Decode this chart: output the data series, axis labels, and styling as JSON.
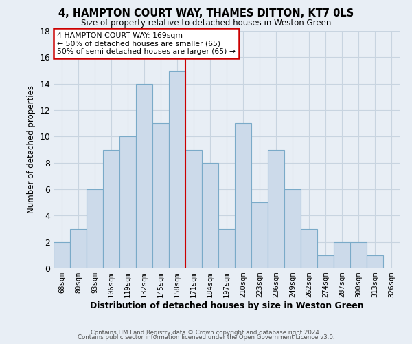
{
  "title": "4, HAMPTON COURT WAY, THAMES DITTON, KT7 0LS",
  "subtitle": "Size of property relative to detached houses in Weston Green",
  "xlabel": "Distribution of detached houses by size in Weston Green",
  "ylabel": "Number of detached properties",
  "bar_labels": [
    "68sqm",
    "80sqm",
    "93sqm",
    "106sqm",
    "119sqm",
    "132sqm",
    "145sqm",
    "158sqm",
    "171sqm",
    "184sqm",
    "197sqm",
    "210sqm",
    "223sqm",
    "236sqm",
    "249sqm",
    "262sqm",
    "274sqm",
    "287sqm",
    "300sqm",
    "313sqm",
    "326sqm"
  ],
  "bar_values": [
    2,
    3,
    6,
    9,
    10,
    14,
    11,
    15,
    9,
    8,
    3,
    11,
    5,
    9,
    6,
    3,
    1,
    2,
    2,
    1,
    0
  ],
  "bar_color": "#ccdaea",
  "bar_edge_color": "#7aaac8",
  "grid_color": "#c8d4e0",
  "bg_color": "#e8eef5",
  "vline_color": "#cc0000",
  "annotation_line1": "4 HAMPTON COURT WAY: 169sqm",
  "annotation_line2": "← 50% of detached houses are smaller (65)",
  "annotation_line3": "50% of semi-detached houses are larger (65) →",
  "annotation_box_color": "#cc0000",
  "footer1": "Contains HM Land Registry data © Crown copyright and database right 2024.",
  "footer2": "Contains public sector information licensed under the Open Government Licence v3.0.",
  "ylim": [
    0,
    18
  ],
  "yticks": [
    0,
    2,
    4,
    6,
    8,
    10,
    12,
    14,
    16,
    18
  ]
}
